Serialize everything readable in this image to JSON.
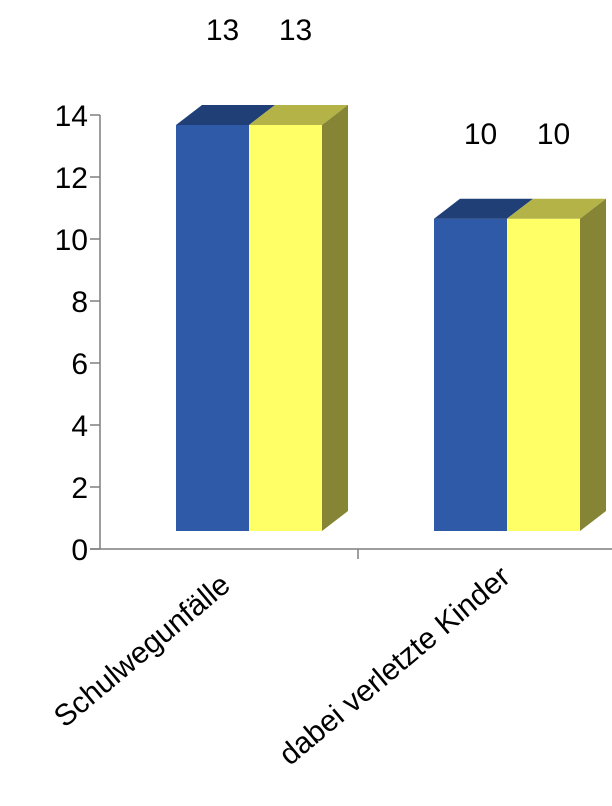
{
  "chart_data": {
    "type": "bar",
    "style": "3d-clustered",
    "categories": [
      "Schulwegunfälle",
      "dabei verletzte Kinder"
    ],
    "series": [
      {
        "values": [
          13,
          10
        ],
        "color": "#2E5AA8"
      },
      {
        "values": [
          13,
          10
        ],
        "color": "#FFFF66"
      }
    ],
    "data_labels": [
      [
        "13",
        "10"
      ],
      [
        "13",
        "10"
      ]
    ],
    "ylim": [
      0,
      14
    ],
    "y_ticks": [
      0,
      2,
      4,
      6,
      8,
      10,
      12,
      14
    ],
    "y_tick_labels": [
      "0",
      "2",
      "4",
      "6",
      "8",
      "10",
      "12",
      "14"
    ],
    "grid": false,
    "legend": "none",
    "title": "",
    "xlabel": "",
    "ylabel": ""
  }
}
